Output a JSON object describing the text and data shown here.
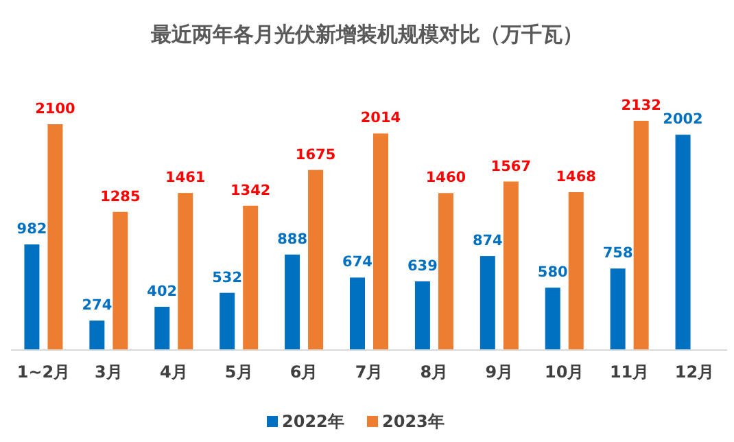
{
  "chart_data": {
    "type": "bar",
    "title": "最近两年各月光伏新增装机规模对比（万千瓦）",
    "categories": [
      "1~2月",
      "3月",
      "4月",
      "5月",
      "6月",
      "7月",
      "8月",
      "9月",
      "10月",
      "11月",
      "12月"
    ],
    "series": [
      {
        "name": "2022年",
        "color": "#0070c0",
        "values": [
          982,
          274,
          402,
          532,
          888,
          674,
          639,
          874,
          580,
          758,
          2002
        ]
      },
      {
        "name": "2023年",
        "color": "#ed7d31",
        "values": [
          2100,
          1285,
          1461,
          1342,
          1675,
          2014,
          1460,
          1567,
          1468,
          2132,
          null
        ]
      }
    ],
    "data_labels": true,
    "legend": "bottom"
  }
}
